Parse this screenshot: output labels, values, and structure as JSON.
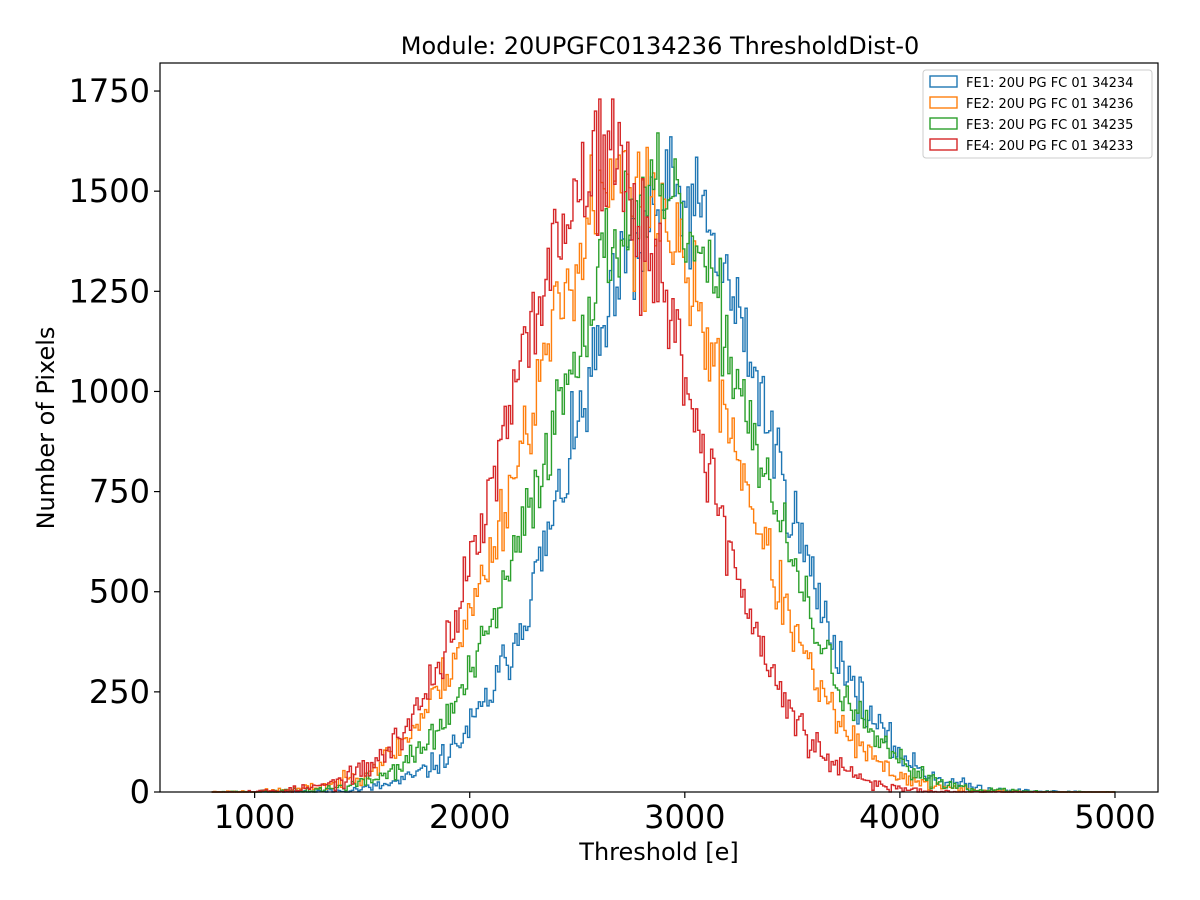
{
  "chart_data": {
    "type": "line",
    "style": "step-histogram",
    "title": "Module: 20UPGFC0134236 ThresholdDist-0",
    "xlabel": "Threshold [e]",
    "ylabel": "Number of Pixels",
    "xlim": [
      560,
      5200
    ],
    "ylim": [
      0,
      1820
    ],
    "xticks": [
      1000,
      2000,
      3000,
      4000,
      5000
    ],
    "xtick_labels": [
      "1000",
      "2000",
      "3000",
      "4000",
      "5000"
    ],
    "yticks": [
      0,
      250,
      500,
      750,
      1000,
      1250,
      1500,
      1750
    ],
    "ytick_labels": [
      "0",
      "250",
      "500",
      "750",
      "1000",
      "1250",
      "1500",
      "1750"
    ],
    "grid": false,
    "legend_position": "top-right",
    "bin_range": [
      800,
      5000
    ],
    "bin_width": 10,
    "series": [
      {
        "name": "FE1: 20U PG FC 01 34234",
        "color": "#1f77b4",
        "mean": 2950,
        "sigma": 450,
        "peak": 1480,
        "jitter": 70,
        "seed": 11,
        "spikes": [
          [
            2940,
            1560
          ],
          [
            3000,
            1460
          ],
          [
            3060,
            1470
          ],
          [
            2800,
            1300
          ],
          [
            2760,
            1230
          ],
          [
            2880,
            1420
          ]
        ]
      },
      {
        "name": "FE2: 20U PG FC 01 34236",
        "color": "#ff7f0e",
        "mean": 2740,
        "sigma": 470,
        "peak": 1520,
        "jitter": 65,
        "seed": 23,
        "spikes": [
          [
            2560,
            1590
          ],
          [
            2690,
            1590
          ],
          [
            2650,
            1580
          ],
          [
            2810,
            1200
          ],
          [
            2760,
            1250
          ]
        ]
      },
      {
        "name": "FE3: 20U PG FC 01 34235",
        "color": "#2ca02c",
        "mean": 2850,
        "sigma": 470,
        "peak": 1480,
        "jitter": 65,
        "seed": 37,
        "spikes": [
          [
            2860,
            1530
          ],
          [
            2810,
            1510
          ],
          [
            2790,
            1490
          ],
          [
            2740,
            1390
          ]
        ]
      },
      {
        "name": "FE4: 20U PG FC 01 34233",
        "color": "#d62728",
        "mean": 2620,
        "sigma": 430,
        "peak": 1560,
        "jitter": 70,
        "seed": 53,
        "spikes": [
          [
            2600,
            1730
          ],
          [
            2660,
            1730
          ],
          [
            2640,
            1650
          ],
          [
            2580,
            1700
          ],
          [
            2790,
            1190
          ],
          [
            2620,
            1640
          ]
        ]
      }
    ]
  }
}
